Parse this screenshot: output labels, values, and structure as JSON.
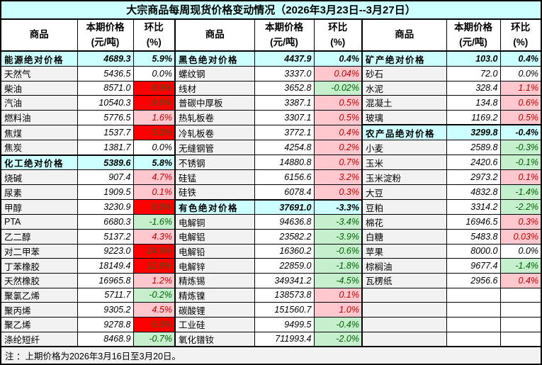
{
  "title": "大宗商品每周现货价格变动情况（2026年3月23日--3月27日）",
  "footnote": "注 ：上期价格为2026年3月16日至3月20日。",
  "columns": {
    "commodity": "商品",
    "price": "本期价格\n(元/吨)",
    "change": "环比\n(%)"
  },
  "colors": {
    "section_bg": "#CCFFFF",
    "name_bg": "#F2F2F2",
    "up_bg": "#FFC7CE",
    "up_text": "#C00000",
    "strong_bg": "#FF0000",
    "strong_text": "#375623",
    "down_bg": "#C6EFCE",
    "down_text": "#006100",
    "border": "#000000"
  },
  "groups": [
    {
      "rows": [
        {
          "name": "能源绝对价格",
          "price": "4689.3",
          "change": "5.9%",
          "t": "section"
        },
        {
          "name": "天然气",
          "price": "5436.5",
          "change": "0.0%",
          "c": "flat"
        },
        {
          "name": "柴油",
          "price": "8571.0",
          "change": "8.9%",
          "c": "strong"
        },
        {
          "name": "汽油",
          "price": "10540.3",
          "change": "9.6%",
          "c": "strong"
        },
        {
          "name": "燃料油",
          "price": "5776.5",
          "change": "1.6%",
          "c": "up"
        },
        {
          "name": "焦煤",
          "price": "1537.7",
          "change": "5.2%",
          "c": "strong"
        },
        {
          "name": "焦炭",
          "price": "1381.7",
          "change": "0.0%",
          "c": "flat"
        },
        {
          "name": "化工绝对价格",
          "price": "5389.6",
          "change": "5.8%",
          "t": "section"
        },
        {
          "name": "烧碱",
          "price": "907.4",
          "change": "4.7%",
          "c": "up"
        },
        {
          "name": "尿素",
          "price": "1909.5",
          "change": "0.1%",
          "c": "up"
        },
        {
          "name": "甲醇",
          "price": "3230.9",
          "change": "8.8%",
          "c": "strong"
        },
        {
          "name": "PTA",
          "price": "6680.3",
          "change": "-1.6%",
          "c": "down"
        },
        {
          "name": "乙二醇",
          "price": "5137.2",
          "change": "4.3%",
          "c": "up"
        },
        {
          "name": "对二甲苯",
          "price": "9223.0",
          "change": "24.9%",
          "c": "strong"
        },
        {
          "name": "丁苯橡胶",
          "price": "18149.4",
          "change": "12.8%",
          "c": "strong"
        },
        {
          "name": "天然橡胶",
          "price": "16965.8",
          "change": "1.2%",
          "c": "up"
        },
        {
          "name": "聚氯乙烯",
          "price": "5711.7",
          "change": "-0.2%",
          "c": "down"
        },
        {
          "name": "聚丙烯",
          "price": "9305.2",
          "change": "4.5%",
          "c": "up"
        },
        {
          "name": "聚乙烯",
          "price": "9278.8",
          "change": "6.0%",
          "c": "strong"
        },
        {
          "name": "涤纶短纤",
          "price": "8468.9",
          "change": "-0.7%",
          "c": "down"
        }
      ]
    },
    {
      "rows": [
        {
          "name": "黑色绝对价格",
          "price": "4437.9",
          "change": "0.4%",
          "t": "section"
        },
        {
          "name": "螺纹钢",
          "price": "3337.0",
          "change": "0.04%",
          "c": "up"
        },
        {
          "name": "线材",
          "price": "3652.8",
          "change": "-0.02%",
          "c": "down"
        },
        {
          "name": "普碳中厚板",
          "price": "3387.1",
          "change": "0.5%",
          "c": "up"
        },
        {
          "name": "热轧板卷",
          "price": "3307.1",
          "change": "0.5%",
          "c": "up"
        },
        {
          "name": "冷轧板卷",
          "price": "3772.1",
          "change": "0.4%",
          "c": "up"
        },
        {
          "name": "无缝钢管",
          "price": "4254.8",
          "change": "0.2%",
          "c": "up"
        },
        {
          "name": "不锈钢",
          "price": "14880.8",
          "change": "0.7%",
          "c": "up"
        },
        {
          "name": "硅锰",
          "price": "6156.6",
          "change": "3.2%",
          "c": "up"
        },
        {
          "name": "硅铁",
          "price": "6078.4",
          "change": "0.3%",
          "c": "up"
        },
        {
          "name": "有色绝对价格",
          "price": "37691.0",
          "change": "-3.3%",
          "t": "section"
        },
        {
          "name": "电解铜",
          "price": "94636.8",
          "change": "-3.4%",
          "c": "down"
        },
        {
          "name": "电解铝",
          "price": "23582.2",
          "change": "-3.9%",
          "c": "down"
        },
        {
          "name": "电解铅",
          "price": "16360.2",
          "change": "-0.6%",
          "c": "down"
        },
        {
          "name": "电解锌",
          "price": "22859.0",
          "change": "-1.8%",
          "c": "down"
        },
        {
          "name": "精炼锡",
          "price": "349341.2",
          "change": "-4.5%",
          "c": "down"
        },
        {
          "name": "精炼镍",
          "price": "138573.8",
          "change": "0.1%",
          "c": "up"
        },
        {
          "name": "碳酸锂",
          "price": "151560.7",
          "change": "1.0%",
          "c": "up"
        },
        {
          "name": "工业硅",
          "price": "9499.5",
          "change": "-0.4%",
          "c": "down"
        },
        {
          "name": "氧化镨钕",
          "price": "711993.4",
          "change": "-2.0%",
          "c": "down"
        }
      ]
    },
    {
      "rows": [
        {
          "name": "矿产绝对价格",
          "price": "103.0",
          "change": "0.4%",
          "t": "section"
        },
        {
          "name": "砂石",
          "price": "72.0",
          "change": "0.0%",
          "c": "flat"
        },
        {
          "name": "水泥",
          "price": "328.4",
          "change": "1.1%",
          "c": "up"
        },
        {
          "name": "混凝土",
          "price": "134.8",
          "change": "0.6%",
          "c": "up"
        },
        {
          "name": "玻璃",
          "price": "1169.2",
          "change": "0.5%",
          "c": "up"
        },
        {
          "name": "农产品绝对价格",
          "price": "3299.8",
          "change": "-0.4%",
          "t": "section"
        },
        {
          "name": "小麦",
          "price": "2589.8",
          "change": "-0.3%",
          "c": "down"
        },
        {
          "name": "玉米",
          "price": "2420.6",
          "change": "-0.1%",
          "c": "down"
        },
        {
          "name": "玉米淀粉",
          "price": "2973.2",
          "change": "0.1%",
          "c": "up"
        },
        {
          "name": "大豆",
          "price": "4832.8",
          "change": "-1.4%",
          "c": "down"
        },
        {
          "name": "豆粕",
          "price": "3314.2",
          "change": "-2.2%",
          "c": "down"
        },
        {
          "name": "棉花",
          "price": "16946.5",
          "change": "0.3%",
          "c": "up"
        },
        {
          "name": "白糖",
          "price": "5483.8",
          "change": "0.03%",
          "c": "up"
        },
        {
          "name": "苹果",
          "price": "8000.0",
          "change": "0.0%",
          "c": "flat"
        },
        {
          "name": "棕榈油",
          "price": "9677.4",
          "change": "-1.4%",
          "c": "down"
        },
        {
          "name": "瓦楞纸",
          "price": "2956.6",
          "change": "0.4%",
          "c": "up"
        },
        {
          "name": "",
          "price": "",
          "change": "",
          "t": "empty"
        },
        {
          "name": "",
          "price": "",
          "change": "",
          "t": "empty"
        },
        {
          "name": "",
          "price": "",
          "change": "",
          "t": "empty"
        },
        {
          "name": "",
          "price": "",
          "change": "",
          "t": "empty"
        }
      ]
    }
  ]
}
